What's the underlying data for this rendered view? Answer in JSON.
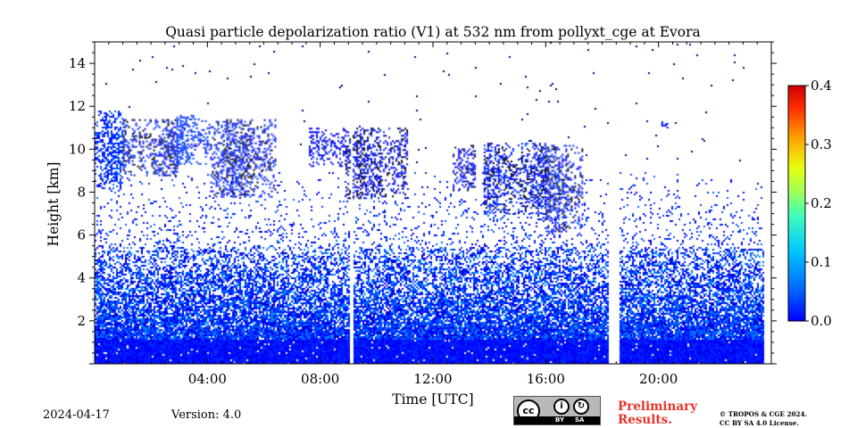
{
  "chart_data": {
    "type": "heatmap",
    "title": "Quasi particle depolarization ratio (V1) at 532 nm from pollyxt_cge at Evora",
    "xlabel": "Time [UTC]",
    "ylabel": "Height [km]",
    "xlim_hours": [
      0,
      24
    ],
    "data_end_hours": 23.7,
    "ylim_km": [
      0,
      15
    ],
    "x_ticks": [
      {
        "v": 4,
        "label": "04:00"
      },
      {
        "v": 8,
        "label": "08:00"
      },
      {
        "v": 12,
        "label": "12:00"
      },
      {
        "v": 16,
        "label": "16:00"
      },
      {
        "v": 20,
        "label": "20:00"
      }
    ],
    "y_ticks": [
      {
        "v": 2,
        "label": "2"
      },
      {
        "v": 4,
        "label": "4"
      },
      {
        "v": 6,
        "label": "6"
      },
      {
        "v": 8,
        "label": "8"
      },
      {
        "v": 10,
        "label": "10"
      },
      {
        "v": 12,
        "label": "12"
      },
      {
        "v": 14,
        "label": "14"
      }
    ],
    "colorbar": {
      "min": 0.0,
      "max": 0.4,
      "colormap": "jet",
      "ticks": [
        {
          "v": 0.0,
          "label": "0.0"
        },
        {
          "v": 0.1,
          "label": "0.1"
        },
        {
          "v": 0.2,
          "label": "0.2"
        },
        {
          "v": 0.3,
          "label": "0.3"
        },
        {
          "v": 0.4,
          "label": "0.4"
        }
      ]
    },
    "gaps_hours": [
      [
        9.05,
        9.12
      ],
      [
        18.2,
        18.6
      ]
    ],
    "aerosol_layer": {
      "dense_top_km": 1.2,
      "top_km": 5.5,
      "typical_value": 0.06
    },
    "cloud_layers": [
      {
        "t_start": 0.0,
        "t_end": 1.0,
        "base_km": 8.2,
        "top_km": 11.8,
        "value": 0.07
      },
      {
        "t_start": 1.0,
        "t_end": 2.9,
        "base_km": 8.8,
        "top_km": 11.4,
        "value": 0.06,
        "saturated": true
      },
      {
        "t_start": 2.9,
        "t_end": 4.1,
        "base_km": 9.3,
        "top_km": 11.6,
        "value": 0.07
      },
      {
        "t_start": 4.1,
        "t_end": 6.4,
        "base_km": 7.8,
        "top_km": 11.4,
        "value": 0.06,
        "saturated": true
      },
      {
        "t_start": 7.6,
        "t_end": 8.9,
        "base_km": 9.2,
        "top_km": 11.0,
        "value": 0.05
      },
      {
        "t_start": 8.9,
        "t_end": 11.1,
        "base_km": 7.7,
        "top_km": 11.0,
        "value": 0.05,
        "saturated": true
      },
      {
        "t_start": 12.7,
        "t_end": 13.5,
        "base_km": 8.1,
        "top_km": 10.2,
        "value": 0.05,
        "saturated": true
      },
      {
        "t_start": 13.8,
        "t_end": 16.0,
        "base_km": 7.0,
        "top_km": 10.3,
        "value": 0.06,
        "saturated": true
      },
      {
        "t_start": 16.0,
        "t_end": 17.3,
        "base_km": 6.2,
        "top_km": 10.2,
        "value": 0.06,
        "saturated": true
      },
      {
        "t_start": 20.1,
        "t_end": 20.3,
        "base_km": 11.0,
        "top_km": 11.3,
        "value": 0.05
      }
    ]
  },
  "footer": {
    "date": "2024-04-17",
    "version": "Version: 4.0",
    "preliminary_line1": "Preliminary",
    "preliminary_line2": "Results.",
    "copyright_line1": "© TROPOS & CGE 2024.",
    "copyright_line2": "CC BY SA 4.0 License.",
    "license_badge_by": "BY",
    "license_badge_sa": "SA"
  }
}
